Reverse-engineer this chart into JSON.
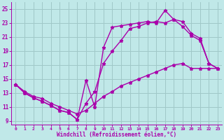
{
  "xlabel": "Windchill (Refroidissement éolien,°C)",
  "xlim": [
    -0.5,
    23.5
  ],
  "ylim": [
    8.5,
    26.0
  ],
  "xticks": [
    0,
    1,
    2,
    3,
    4,
    5,
    6,
    7,
    8,
    9,
    10,
    11,
    12,
    13,
    14,
    15,
    16,
    17,
    18,
    19,
    20,
    21,
    22,
    23
  ],
  "yticks": [
    9,
    11,
    13,
    15,
    17,
    19,
    21,
    23,
    25
  ],
  "bg_color": "#c0e8e8",
  "line_color": "#aa00aa",
  "grid_color": "#a0c8c8",
  "line1_x": [
    0,
    1,
    2,
    3,
    4,
    5,
    6,
    7,
    8,
    9,
    10,
    11,
    12,
    13,
    14,
    15,
    16,
    17,
    18,
    19,
    20,
    21,
    22,
    23
  ],
  "line1_y": [
    14.2,
    13.0,
    12.3,
    11.8,
    11.2,
    10.5,
    10.2,
    9.2,
    14.8,
    11.0,
    19.5,
    22.4,
    22.6,
    22.8,
    23.0,
    23.2,
    23.0,
    24.8,
    23.5,
    23.2,
    21.5,
    20.8,
    17.2,
    16.5
  ],
  "line2_x": [
    0,
    1,
    2,
    3,
    4,
    5,
    6,
    7,
    8,
    9,
    10,
    11,
    12,
    13,
    14,
    15,
    16,
    17,
    18,
    19,
    20,
    21,
    22,
    23
  ],
  "line2_y": [
    14.2,
    13.0,
    12.3,
    11.8,
    11.2,
    10.5,
    10.2,
    9.2,
    11.5,
    13.2,
    17.2,
    19.0,
    20.5,
    22.2,
    22.5,
    23.0,
    23.2,
    23.0,
    23.5,
    22.5,
    21.2,
    20.5,
    17.2,
    16.5
  ],
  "line3_x": [
    0,
    1,
    2,
    3,
    4,
    5,
    6,
    7,
    8,
    9,
    10,
    11,
    12,
    13,
    14,
    15,
    16,
    17,
    18,
    19,
    20,
    21,
    22,
    23
  ],
  "line3_y": [
    14.2,
    13.2,
    12.5,
    12.2,
    11.5,
    11.0,
    10.5,
    10.0,
    10.5,
    11.5,
    12.5,
    13.2,
    14.0,
    14.5,
    15.0,
    15.5,
    16.0,
    16.5,
    17.0,
    17.2,
    16.5,
    16.5,
    16.5,
    16.5
  ],
  "marker": "*",
  "markersize": 3.5,
  "linewidth": 1.0
}
